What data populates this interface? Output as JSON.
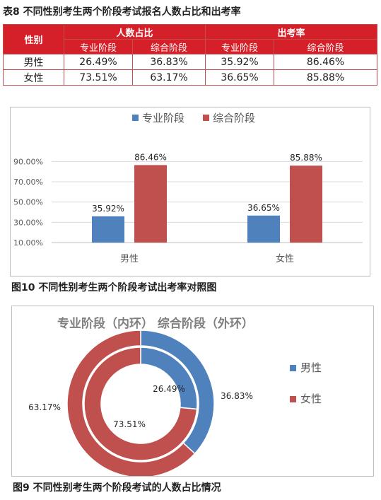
{
  "table8": {
    "caption": "表8  不同性别考生两个阶段考试报名人数占比和出考率",
    "col_gender": "性别",
    "group_share": "人数占比",
    "group_rate": "出考率",
    "sub_pro": "专业阶段",
    "sub_comp": "综合阶段",
    "rows": [
      {
        "gender": "男性",
        "share_pro": "26.49%",
        "share_comp": "36.83%",
        "rate_pro": "35.92%",
        "rate_comp": "86.46%"
      },
      {
        "gender": "女性",
        "share_pro": "73.51%",
        "share_comp": "63.17%",
        "rate_pro": "36.65%",
        "rate_comp": "85.88%"
      }
    ]
  },
  "fig10": {
    "caption": "图10  不同性别考生两个阶段考试出考率对照图"
  },
  "fig9": {
    "caption": "图9  不同性别考生两个阶段考试的人数占比情况"
  },
  "chart_data": [
    {
      "type": "bar",
      "categories": [
        "男性",
        "女性"
      ],
      "series": [
        {
          "name": "专业阶段",
          "values": [
            35.92,
            36.65
          ],
          "labels": [
            "35.92%",
            "36.65%"
          ],
          "color": "#4f81bd"
        },
        {
          "name": "综合阶段",
          "values": [
            86.46,
            85.88
          ],
          "labels": [
            "86.46%",
            "85.88%"
          ],
          "color": "#c0504d"
        }
      ],
      "yticks": [
        "90.00%",
        "70.00%",
        "50.00%",
        "30.00%",
        "10.00%"
      ],
      "ytick_values": [
        90,
        70,
        50,
        30,
        10
      ],
      "ylim": [
        10,
        100
      ],
      "legend_position": "top",
      "grid": true
    },
    {
      "type": "pie",
      "title": "专业阶段（内环）   综合阶段（外环）",
      "rings": [
        {
          "name": "专业阶段",
          "position": "inner",
          "values": [
            26.49,
            73.51
          ],
          "labels": [
            "26.49%",
            "73.51%"
          ]
        },
        {
          "name": "综合阶段",
          "position": "outer",
          "values": [
            36.83,
            63.17
          ],
          "labels": [
            "36.83%",
            "63.17%"
          ]
        }
      ],
      "legend": [
        {
          "name": "男性",
          "color": "#4f81bd"
        },
        {
          "name": "女性",
          "color": "#c0504d"
        }
      ],
      "legend_position": "right"
    }
  ]
}
